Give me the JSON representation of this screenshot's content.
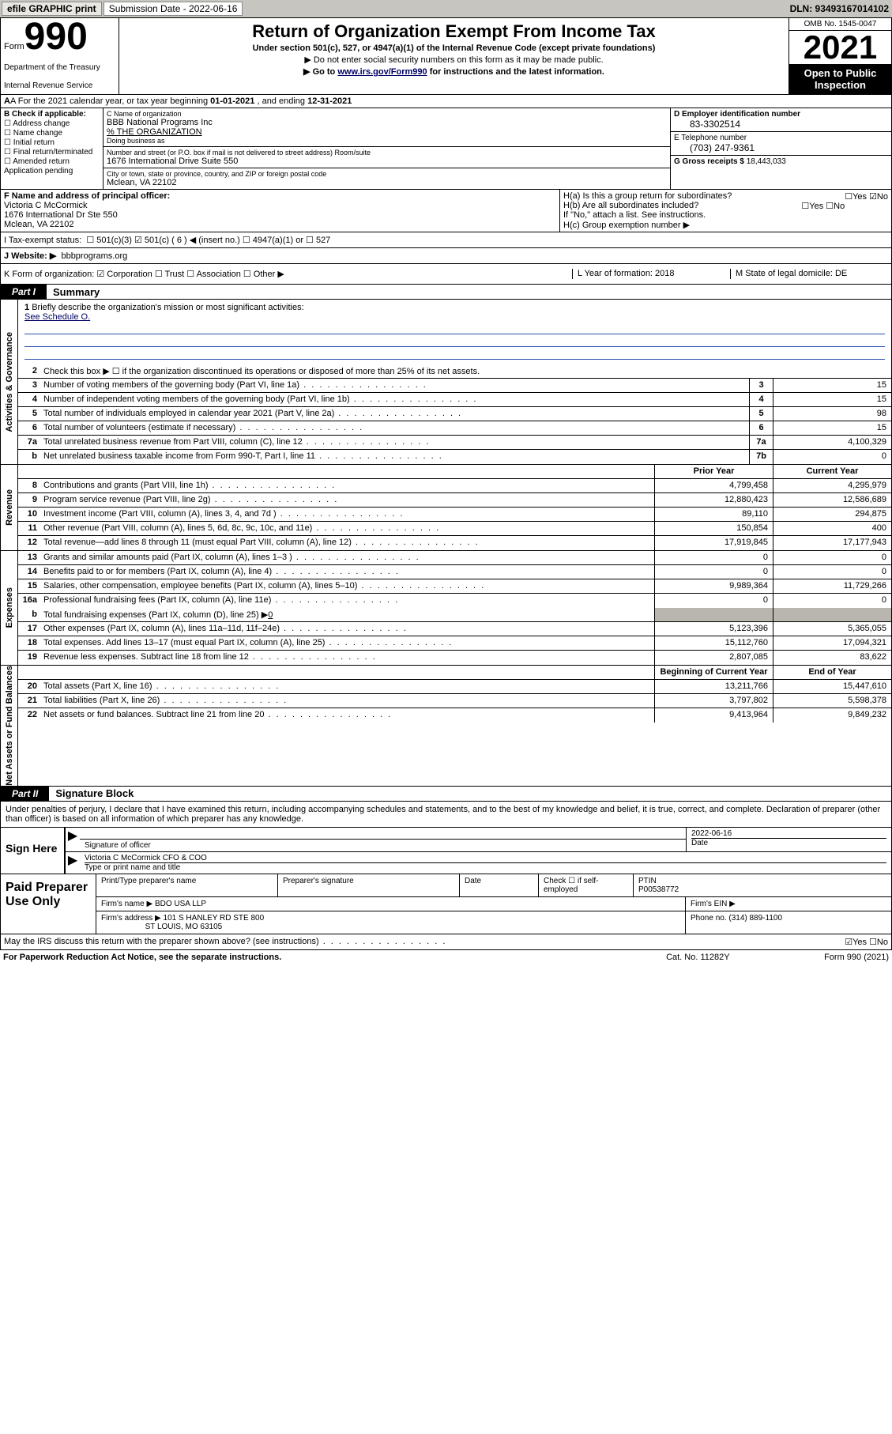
{
  "topbar": {
    "efile": "efile GRAPHIC print",
    "sub_label": "Submission Date - 2022-06-16",
    "dln_label": "DLN: 93493167014102"
  },
  "hdr": {
    "form_word": "Form",
    "form_num": "990",
    "dept": "Department of the Treasury",
    "irs": "Internal Revenue Service",
    "title": "Return of Organization Exempt From Income Tax",
    "sub1": "Under section 501(c), 527, or 4947(a)(1) of the Internal Revenue Code (except private foundations)",
    "sub2": "▶ Do not enter social security numbers on this form as it may be made public.",
    "sub3a": "▶ Go to ",
    "sub3_link": "www.irs.gov/Form990",
    "sub3b": " for instructions and the latest information.",
    "omb": "OMB No. 1545-0047",
    "year": "2021",
    "inspect": "Open to Public Inspection"
  },
  "rowA": {
    "prefix": "A For the 2021 calendar year, or tax year beginning ",
    "begin": "01-01-2021",
    "mid": " , and ending ",
    "end": "12-31-2021"
  },
  "colB": {
    "label": "B Check if applicable:",
    "addr": "Address change",
    "name": "Name change",
    "init": "Initial return",
    "final": "Final return/terminated",
    "amend": "Amended return",
    "app": "Application pending"
  },
  "colC": {
    "name_lab": "C Name of organization",
    "name": "BBB National Programs Inc",
    "pct": "% THE ORGANIZATION",
    "dba_lab": "Doing business as",
    "addr_lab": "Number and street (or P.O. box if mail is not delivered to street address)    Room/suite",
    "addr": "1676 International Drive Suite 550",
    "city_lab": "City or town, state or province, country, and ZIP or foreign postal code",
    "city": "Mclean, VA  22102"
  },
  "colD": {
    "ein_lab": "D Employer identification number",
    "ein": "83-3302514",
    "tel_lab": "E Telephone number",
    "tel": "(703) 247-9361",
    "gross_lab": "G Gross receipts $ ",
    "gross": "18,443,033"
  },
  "rowF": {
    "lab": "F Name and address of principal officer:",
    "name": "Victoria C McCormick",
    "addr": "1676 International Dr Ste 550",
    "city": "Mclean, VA  22102"
  },
  "rowH": {
    "ha": "H(a)  Is this a group return for subordinates?",
    "ha_ans": "☐Yes  ☑No",
    "hb": "H(b)  Are all subordinates included?",
    "hb_ans": "☐Yes  ☐No",
    "hb_note": "If \"No,\" attach a list. See instructions.",
    "hc": "H(c)  Group exemption number ▶"
  },
  "rowI": {
    "lab": "I    Tax-exempt status:",
    "opts": "☐ 501(c)(3)   ☑ 501(c) ( 6 ) ◀ (insert no.)   ☐ 4947(a)(1) or   ☐ 527"
  },
  "rowJ": {
    "lab": "J   Website: ▶",
    "val": "bbbprograms.org"
  },
  "rowK": {
    "k": "K Form of organization:  ☑ Corporation  ☐ Trust  ☐ Association  ☐ Other ▶",
    "l": "L Year of formation: 2018",
    "m": "M State of legal domicile: DE"
  },
  "part1": {
    "tab": "Part I",
    "title": "Summary"
  },
  "vtabs": {
    "gov": "Activities & Governance",
    "rev": "Revenue",
    "exp": "Expenses",
    "net": "Net Assets or\nFund Balances"
  },
  "mission": {
    "num": "1",
    "desc": "Briefly describe the organization's mission or most significant activities:",
    "see": "See Schedule O."
  },
  "line2": {
    "num": "2",
    "desc": "Check this box ▶ ☐  if the organization discontinued its operations or disposed of more than 25% of its net assets."
  },
  "govlines": [
    {
      "n": "3",
      "d": "Number of voting members of the governing body (Part VI, line 1a)",
      "bn": "3",
      "bv": "15"
    },
    {
      "n": "4",
      "d": "Number of independent voting members of the governing body (Part VI, line 1b)",
      "bn": "4",
      "bv": "15"
    },
    {
      "n": "5",
      "d": "Total number of individuals employed in calendar year 2021 (Part V, line 2a)",
      "bn": "5",
      "bv": "98"
    },
    {
      "n": "6",
      "d": "Total number of volunteers (estimate if necessary)",
      "bn": "6",
      "bv": "15"
    },
    {
      "n": "7a",
      "d": "Total unrelated business revenue from Part VIII, column (C), line 12",
      "bn": "7a",
      "bv": "4,100,329"
    },
    {
      "n": "b",
      "d": "Net unrelated business taxable income from Form 990-T, Part I, line 11",
      "bn": "7b",
      "bv": "0"
    }
  ],
  "colhdr": {
    "prior": "Prior Year",
    "curr": "Current Year"
  },
  "revlines": [
    {
      "n": "8",
      "d": "Contributions and grants (Part VIII, line 1h)",
      "p": "4,799,458",
      "c": "4,295,979"
    },
    {
      "n": "9",
      "d": "Program service revenue (Part VIII, line 2g)",
      "p": "12,880,423",
      "c": "12,586,689"
    },
    {
      "n": "10",
      "d": "Investment income (Part VIII, column (A), lines 3, 4, and 7d )",
      "p": "89,110",
      "c": "294,875"
    },
    {
      "n": "11",
      "d": "Other revenue (Part VIII, column (A), lines 5, 6d, 8c, 9c, 10c, and 11e)",
      "p": "150,854",
      "c": "400"
    },
    {
      "n": "12",
      "d": "Total revenue—add lines 8 through 11 (must equal Part VIII, column (A), line 12)",
      "p": "17,919,845",
      "c": "17,177,943"
    }
  ],
  "explines": [
    {
      "n": "13",
      "d": "Grants and similar amounts paid (Part IX, column (A), lines 1–3 )",
      "p": "0",
      "c": "0"
    },
    {
      "n": "14",
      "d": "Benefits paid to or for members (Part IX, column (A), line 4)",
      "p": "0",
      "c": "0"
    },
    {
      "n": "15",
      "d": "Salaries, other compensation, employee benefits (Part IX, column (A), lines 5–10)",
      "p": "9,989,364",
      "c": "11,729,266"
    },
    {
      "n": "16a",
      "d": "Professional fundraising fees (Part IX, column (A), line 11e)",
      "p": "0",
      "c": "0"
    }
  ],
  "line16b": {
    "n": "b",
    "d": "Total fundraising expenses (Part IX, column (D), line 25) ▶",
    "v": "0"
  },
  "explines2": [
    {
      "n": "17",
      "d": "Other expenses (Part IX, column (A), lines 11a–11d, 11f–24e)",
      "p": "5,123,396",
      "c": "5,365,055"
    },
    {
      "n": "18",
      "d": "Total expenses. Add lines 13–17 (must equal Part IX, column (A), line 25)",
      "p": "15,112,760",
      "c": "17,094,321"
    },
    {
      "n": "19",
      "d": "Revenue less expenses. Subtract line 18 from line 12",
      "p": "2,807,085",
      "c": "83,622"
    }
  ],
  "nethdr": {
    "beg": "Beginning of Current Year",
    "end": "End of Year"
  },
  "netlines": [
    {
      "n": "20",
      "d": "Total assets (Part X, line 16)",
      "p": "13,211,766",
      "c": "15,447,610"
    },
    {
      "n": "21",
      "d": "Total liabilities (Part X, line 26)",
      "p": "3,797,802",
      "c": "5,598,378"
    },
    {
      "n": "22",
      "d": "Net assets or fund balances. Subtract line 21 from line 20",
      "p": "9,413,964",
      "c": "9,849,232"
    }
  ],
  "part2": {
    "tab": "Part II",
    "title": "Signature Block"
  },
  "sig": {
    "intro": "Under penalties of perjury, I declare that I have examined this return, including accompanying schedules and statements, and to the best of my knowledge and belief, it is true, correct, and complete. Declaration of preparer (other than officer) is based on all information of which preparer has any knowledge.",
    "here": "Sign Here",
    "sig_lab": "Signature of officer",
    "date": "2022-06-16",
    "date_lab": "Date",
    "name": "Victoria C McCormick  CFO & COO",
    "name_lab": "Type or print name and title"
  },
  "prep": {
    "title": "Paid Preparer Use Only",
    "h1": "Print/Type preparer's name",
    "h2": "Preparer's signature",
    "h3": "Date",
    "h4a": "Check ☐ if self-employed",
    "h4b": "PTIN",
    "ptin": "P00538772",
    "firm_lab": "Firm's name    ▶",
    "firm": "BDO USA LLP",
    "ein_lab": "Firm's EIN ▶",
    "addr_lab": "Firm's address ▶",
    "addr1": "101 S HANLEY RD STE 800",
    "addr2": "ST LOUIS, MO  63105",
    "phone_lab": "Phone no. ",
    "phone": "(314) 889-1100"
  },
  "discuss": {
    "q": "May the IRS discuss this return with the preparer shown above? (see instructions)",
    "ans": "☑Yes  ☐No"
  },
  "footer": {
    "l": "For Paperwork Reduction Act Notice, see the separate instructions.",
    "m": "Cat. No. 11282Y",
    "r": "Form 990 (2021)"
  }
}
